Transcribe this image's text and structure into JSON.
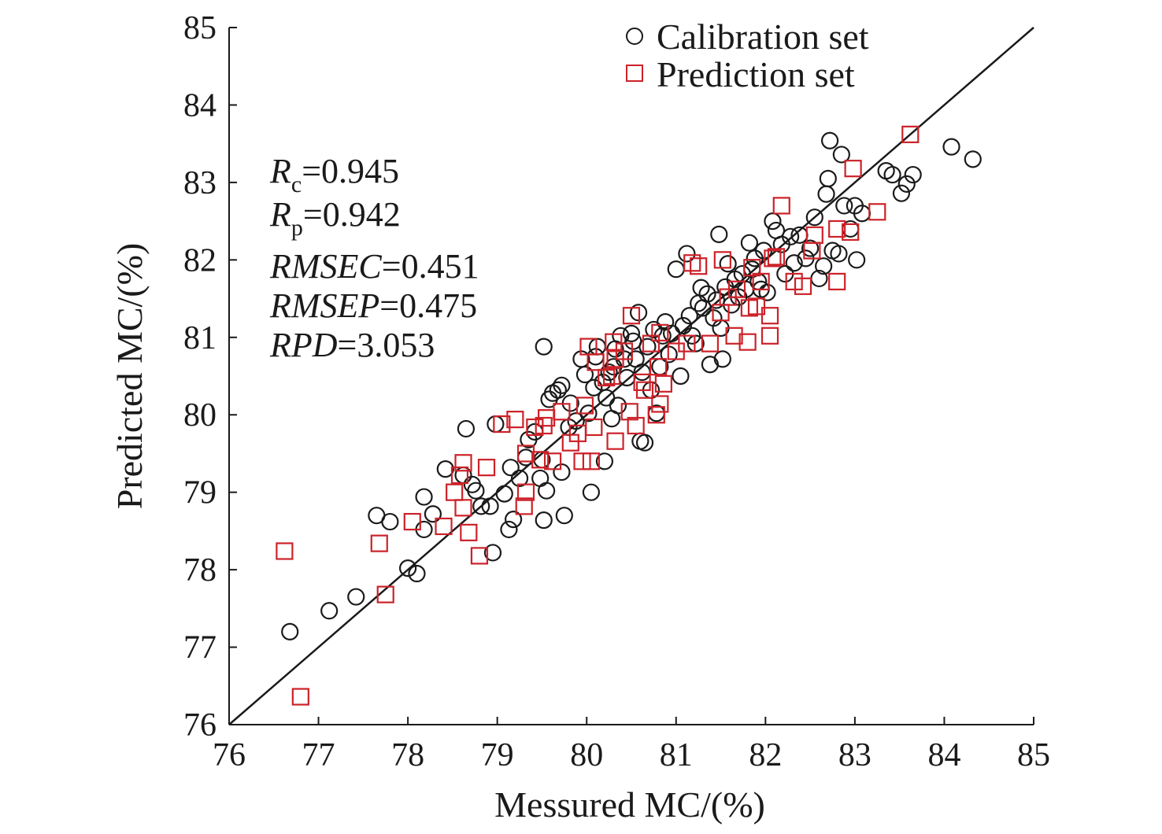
{
  "chart_data": {
    "type": "scatter",
    "xlabel": "Messured MC/(%)",
    "ylabel": "Predicted MC/(%)",
    "xlim": [
      76,
      85
    ],
    "ylim": [
      76,
      85
    ],
    "xticks": [
      "76",
      "77",
      "78",
      "79",
      "80",
      "81",
      "82",
      "83",
      "84",
      "85"
    ],
    "yticks": [
      "76",
      "77",
      "78",
      "79",
      "80",
      "81",
      "82",
      "83",
      "84",
      "85"
    ],
    "legend_position": "top-right",
    "reference_line": {
      "from": [
        76,
        76
      ],
      "to": [
        85,
        85
      ]
    },
    "stats": [
      {
        "label": "R",
        "sub": "c",
        "value": "=0.945"
      },
      {
        "label": "R",
        "sub": "p",
        "value": "=0.942"
      },
      {
        "label": "RMSEC",
        "sub": "",
        "value": "=0.451"
      },
      {
        "label": "RMSEP",
        "sub": "",
        "value": "=0.475"
      },
      {
        "label": "RPD",
        "sub": "",
        "value": "=3.053"
      }
    ],
    "series": [
      {
        "name": "Calibration set",
        "marker": "circle",
        "color": "#1a1a1a",
        "points": [
          [
            76.68,
            77.2
          ],
          [
            77.12,
            77.47
          ],
          [
            77.42,
            77.65
          ],
          [
            78.0,
            78.02
          ],
          [
            78.1,
            77.95
          ],
          [
            77.65,
            78.7
          ],
          [
            77.8,
            78.62
          ],
          [
            78.18,
            78.94
          ],
          [
            78.28,
            78.72
          ],
          [
            78.18,
            78.52
          ],
          [
            78.42,
            79.3
          ],
          [
            78.62,
            79.22
          ],
          [
            78.72,
            79.1
          ],
          [
            78.76,
            79.02
          ],
          [
            78.92,
            78.82
          ],
          [
            78.95,
            78.22
          ],
          [
            78.82,
            78.82
          ],
          [
            78.65,
            79.82
          ],
          [
            78.98,
            79.88
          ],
          [
            79.08,
            78.98
          ],
          [
            79.15,
            79.32
          ],
          [
            79.13,
            78.52
          ],
          [
            79.18,
            78.65
          ],
          [
            79.25,
            79.18
          ],
          [
            79.32,
            79.45
          ],
          [
            79.35,
            79.68
          ],
          [
            79.42,
            79.78
          ],
          [
            79.48,
            79.18
          ],
          [
            79.52,
            80.88
          ],
          [
            79.5,
            79.42
          ],
          [
            79.52,
            78.64
          ],
          [
            79.55,
            79.02
          ],
          [
            79.58,
            80.2
          ],
          [
            79.62,
            80.28
          ],
          [
            79.68,
            80.32
          ],
          [
            79.72,
            80.38
          ],
          [
            79.75,
            78.7
          ],
          [
            79.72,
            79.26
          ],
          [
            79.8,
            79.84
          ],
          [
            79.82,
            80.15
          ],
          [
            79.88,
            79.92
          ],
          [
            79.94,
            80.72
          ],
          [
            79.98,
            80.52
          ],
          [
            80.02,
            80.02
          ],
          [
            80.05,
            79.0
          ],
          [
            80.08,
            80.35
          ],
          [
            80.1,
            80.75
          ],
          [
            80.12,
            80.88
          ],
          [
            80.18,
            80.42
          ],
          [
            80.2,
            79.4
          ],
          [
            80.22,
            80.22
          ],
          [
            80.25,
            80.55
          ],
          [
            80.28,
            79.95
          ],
          [
            80.3,
            80.62
          ],
          [
            80.32,
            80.85
          ],
          [
            80.35,
            80.12
          ],
          [
            80.38,
            81.02
          ],
          [
            80.42,
            80.72
          ],
          [
            80.45,
            80.48
          ],
          [
            80.5,
            81.05
          ],
          [
            80.52,
            80.95
          ],
          [
            80.55,
            80.72
          ],
          [
            80.58,
            81.32
          ],
          [
            80.6,
            79.66
          ],
          [
            80.62,
            80.55
          ],
          [
            80.65,
            79.64
          ],
          [
            80.68,
            80.88
          ],
          [
            80.72,
            80.32
          ],
          [
            80.75,
            81.1
          ],
          [
            80.78,
            80.02
          ],
          [
            80.82,
            80.62
          ],
          [
            80.85,
            81.02
          ],
          [
            80.88,
            81.2
          ],
          [
            80.92,
            80.78
          ],
          [
            80.95,
            81.05
          ],
          [
            81.0,
            81.88
          ],
          [
            81.05,
            80.5
          ],
          [
            81.08,
            81.15
          ],
          [
            81.12,
            82.08
          ],
          [
            81.15,
            81.28
          ],
          [
            81.18,
            81.02
          ],
          [
            81.22,
            80.92
          ],
          [
            81.25,
            81.44
          ],
          [
            81.28,
            81.64
          ],
          [
            81.3,
            81.38
          ],
          [
            81.35,
            81.56
          ],
          [
            81.38,
            80.65
          ],
          [
            81.42,
            81.25
          ],
          [
            81.45,
            81.48
          ],
          [
            81.48,
            82.33
          ],
          [
            81.5,
            81.12
          ],
          [
            81.52,
            80.72
          ],
          [
            81.55,
            81.65
          ],
          [
            81.58,
            81.95
          ],
          [
            81.62,
            81.42
          ],
          [
            81.66,
            81.75
          ],
          [
            81.7,
            81.52
          ],
          [
            81.74,
            81.82
          ],
          [
            81.78,
            81.62
          ],
          [
            81.82,
            82.22
          ],
          [
            81.85,
            81.88
          ],
          [
            81.88,
            82.02
          ],
          [
            81.92,
            81.72
          ],
          [
            81.95,
            81.62
          ],
          [
            81.98,
            82.12
          ],
          [
            82.02,
            81.58
          ],
          [
            82.08,
            82.5
          ],
          [
            82.12,
            82.38
          ],
          [
            82.18,
            82.2
          ],
          [
            82.22,
            81.82
          ],
          [
            82.28,
            82.3
          ],
          [
            82.32,
            81.96
          ],
          [
            82.38,
            82.32
          ],
          [
            82.45,
            82.02
          ],
          [
            82.5,
            82.15
          ],
          [
            82.55,
            82.55
          ],
          [
            82.6,
            81.76
          ],
          [
            82.65,
            81.92
          ],
          [
            82.68,
            82.85
          ],
          [
            82.7,
            83.05
          ],
          [
            82.72,
            83.54
          ],
          [
            82.75,
            82.12
          ],
          [
            82.82,
            82.08
          ],
          [
            82.85,
            83.36
          ],
          [
            82.88,
            82.7
          ],
          [
            82.95,
            82.4
          ],
          [
            83.0,
            82.7
          ],
          [
            83.02,
            82.0
          ],
          [
            83.08,
            82.6
          ],
          [
            83.35,
            83.15
          ],
          [
            83.42,
            83.1
          ],
          [
            83.52,
            82.86
          ],
          [
            83.58,
            82.98
          ],
          [
            83.65,
            83.1
          ],
          [
            84.08,
            83.46
          ],
          [
            84.32,
            83.3
          ]
        ]
      },
      {
        "name": "Prediction set",
        "marker": "square",
        "color": "#cc2229",
        "points": [
          [
            76.62,
            78.24
          ],
          [
            76.8,
            76.36
          ],
          [
            77.68,
            78.34
          ],
          [
            77.75,
            77.68
          ],
          [
            78.05,
            78.62
          ],
          [
            78.4,
            78.56
          ],
          [
            78.52,
            79.0
          ],
          [
            78.58,
            79.22
          ],
          [
            78.62,
            79.38
          ],
          [
            78.62,
            78.8
          ],
          [
            78.68,
            78.48
          ],
          [
            78.8,
            78.18
          ],
          [
            78.88,
            79.32
          ],
          [
            79.05,
            79.88
          ],
          [
            79.2,
            79.94
          ],
          [
            79.3,
            78.82
          ],
          [
            79.32,
            79.0
          ],
          [
            79.32,
            79.5
          ],
          [
            79.42,
            79.84
          ],
          [
            79.48,
            79.42
          ],
          [
            79.52,
            79.86
          ],
          [
            79.55,
            79.96
          ],
          [
            79.62,
            79.4
          ],
          [
            79.72,
            80.04
          ],
          [
            79.82,
            79.64
          ],
          [
            79.9,
            79.76
          ],
          [
            79.95,
            79.4
          ],
          [
            79.98,
            80.12
          ],
          [
            80.02,
            80.88
          ],
          [
            80.05,
            79.4
          ],
          [
            80.08,
            79.84
          ],
          [
            80.1,
            80.68
          ],
          [
            80.22,
            80.48
          ],
          [
            80.28,
            80.5
          ],
          [
            80.3,
            80.94
          ],
          [
            80.32,
            80.72
          ],
          [
            80.32,
            79.66
          ],
          [
            80.42,
            80.82
          ],
          [
            80.48,
            80.04
          ],
          [
            80.5,
            81.28
          ],
          [
            80.55,
            79.86
          ],
          [
            80.62,
            80.42
          ],
          [
            80.65,
            80.32
          ],
          [
            80.72,
            80.92
          ],
          [
            80.78,
            80.0
          ],
          [
            80.8,
            80.62
          ],
          [
            80.82,
            81.06
          ],
          [
            80.82,
            80.14
          ],
          [
            80.86,
            80.4
          ],
          [
            81.0,
            80.82
          ],
          [
            81.12,
            80.92
          ],
          [
            81.18,
            81.96
          ],
          [
            81.25,
            81.92
          ],
          [
            81.38,
            80.92
          ],
          [
            81.5,
            81.32
          ],
          [
            81.52,
            82.0
          ],
          [
            81.58,
            81.52
          ],
          [
            81.65,
            81.02
          ],
          [
            81.68,
            81.62
          ],
          [
            81.8,
            80.94
          ],
          [
            81.82,
            81.38
          ],
          [
            81.85,
            81.9
          ],
          [
            81.9,
            81.4
          ],
          [
            81.95,
            81.72
          ],
          [
            82.05,
            81.28
          ],
          [
            82.05,
            81.02
          ],
          [
            82.08,
            82.02
          ],
          [
            82.12,
            82.04
          ],
          [
            82.18,
            82.7
          ],
          [
            82.32,
            81.72
          ],
          [
            82.42,
            81.66
          ],
          [
            82.52,
            82.12
          ],
          [
            82.55,
            82.32
          ],
          [
            82.8,
            82.4
          ],
          [
            82.8,
            81.72
          ],
          [
            82.95,
            82.36
          ],
          [
            82.98,
            83.18
          ],
          [
            83.25,
            82.62
          ],
          [
            83.62,
            83.62
          ]
        ]
      }
    ]
  }
}
